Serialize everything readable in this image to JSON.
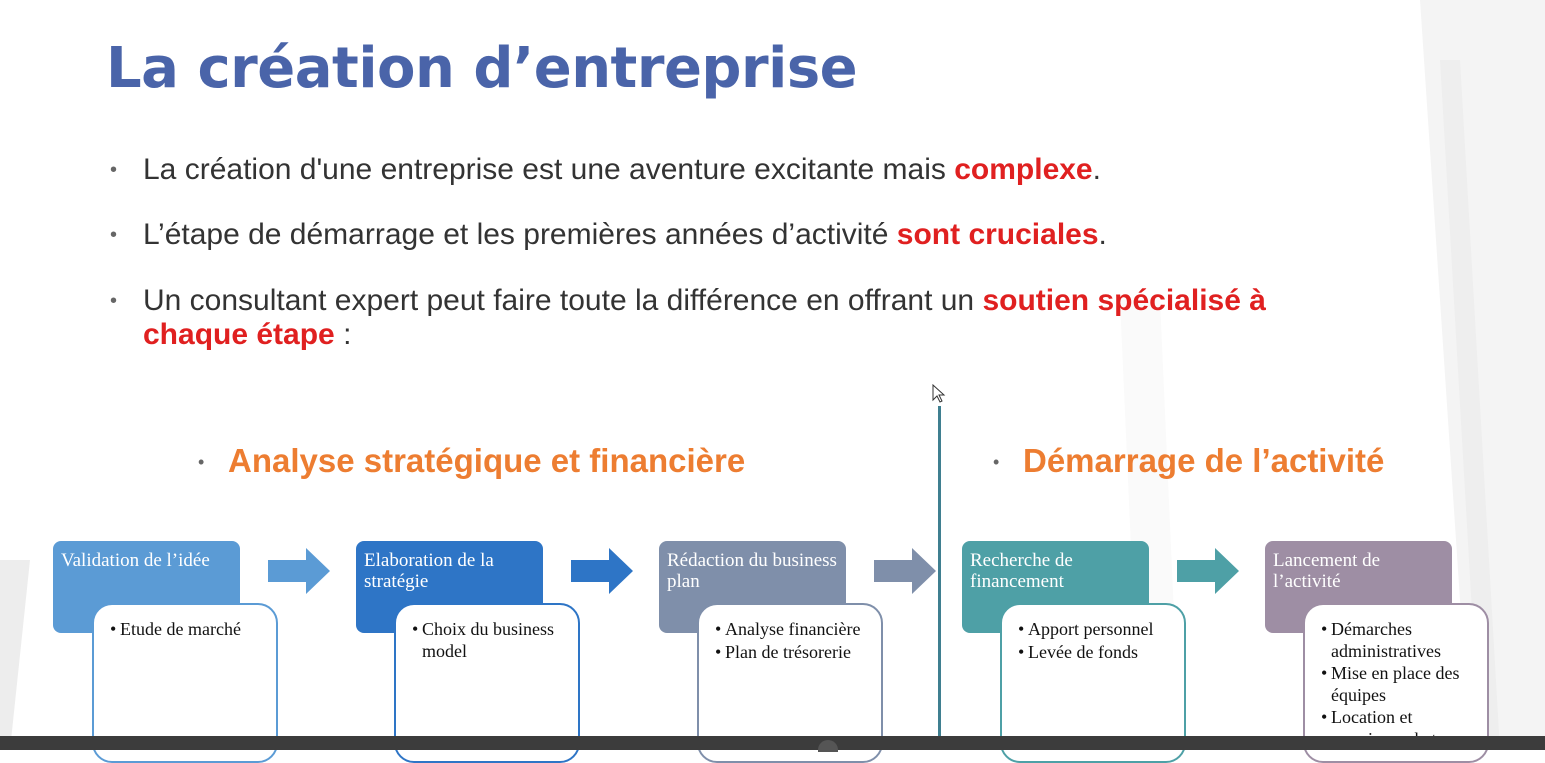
{
  "title": "La création d’entreprise",
  "bullets": [
    {
      "text": "La création d'une entreprise est une aventure excitante mais ",
      "highlight": "complexe",
      "after": "."
    },
    {
      "text": "L’étape de démarrage et les premières années d’activité ",
      "highlight": "sont cruciales",
      "after": "."
    },
    {
      "text": "Un consultant expert peut faire toute la différence en offrant un ",
      "highlight": "soutien spécialisé à chaque étape",
      "after": " :"
    }
  ],
  "sections": {
    "left": "Analyse stratégique et financière",
    "right": "Démarrage de l’activité"
  },
  "steps": [
    {
      "title": "Validation de l’idée",
      "items": [
        "Etude de marché"
      ],
      "color": "#5b9bd5",
      "border": "#5b9bd5"
    },
    {
      "title": "Elaboration de la stratégie",
      "items": [
        "Choix du business model"
      ],
      "color": "#2e75c6",
      "border": "#2e75c6"
    },
    {
      "title": "Rédaction du business plan",
      "items": [
        "Analyse financière",
        "Plan de trésorerie"
      ],
      "color": "#7f8faa",
      "border": "#7f8faa"
    },
    {
      "title": "Recherche de financement",
      "items": [
        "Apport personnel",
        "Levée de fonds"
      ],
      "color": "#4ea0a6",
      "border": "#4ea0a6"
    },
    {
      "title": "Lancement de l’activité",
      "items": [
        "Démarches administratives",
        "Mise en place des équipes",
        "Location et premiers achats"
      ],
      "color": "#9e8ea4",
      "border": "#9e8ea4"
    }
  ],
  "arrow_colors": [
    "#5b9bd5",
    "#2e75c6",
    "#7f8faa",
    "#4ea0a6"
  ],
  "colors": {
    "title": "#4a64a9",
    "highlight": "#e02020",
    "section": "#ed7d31",
    "divider": "#3f7f90"
  }
}
